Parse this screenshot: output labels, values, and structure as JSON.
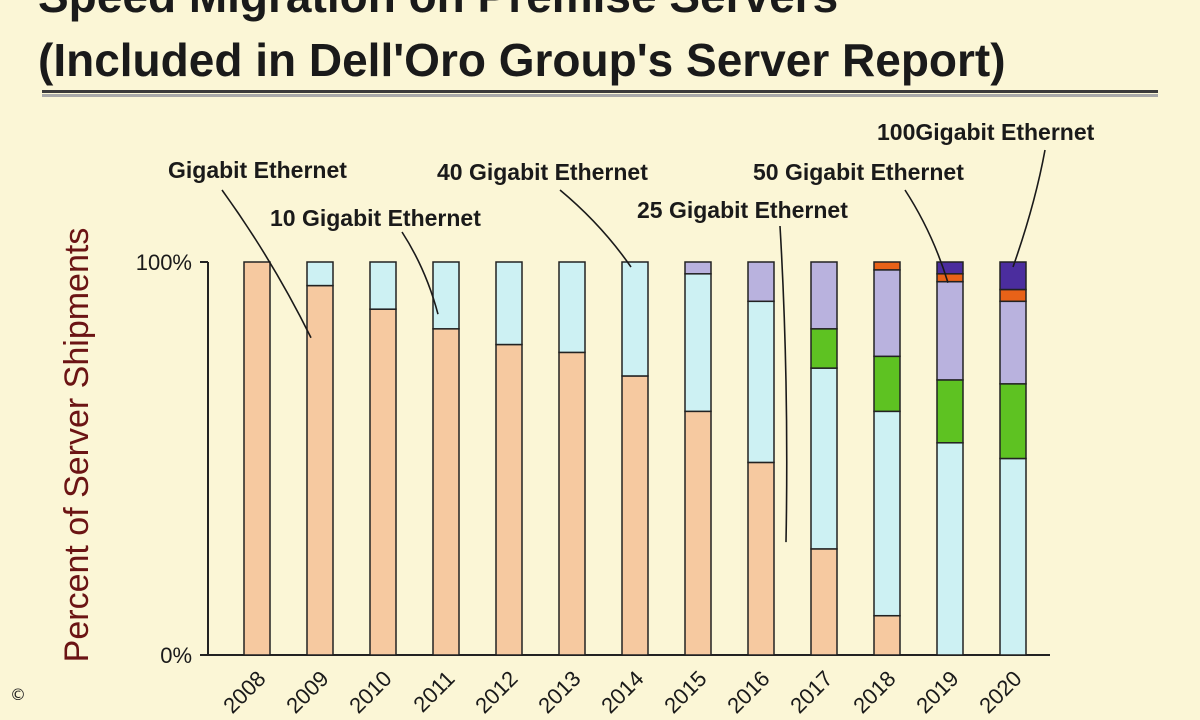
{
  "chart_data": {
    "type": "bar",
    "stacked": true,
    "title": [
      "Speed Migration on Premise Servers",
      "(Included in Dell'Oro Group's Server Report)"
    ],
    "ylabel": "Percent of Server Shipments",
    "yticks": [
      "0%",
      "100%"
    ],
    "ylim": [
      0,
      100
    ],
    "categories": [
      "2008",
      "2009",
      "2010",
      "2011",
      "2012",
      "2013",
      "2014",
      "2015",
      "2016",
      "2017",
      "2018",
      "2019",
      "2020"
    ],
    "series": [
      {
        "name": "Gigabit Ethernet",
        "color": "#f6c9a0",
        "values": [
          100,
          94,
          88,
          83,
          79,
          77,
          71,
          62,
          49,
          27,
          10,
          0,
          0
        ]
      },
      {
        "name": "10 Gigabit Ethernet",
        "color": "#cdf1f3",
        "values": [
          0,
          6,
          12,
          17,
          21,
          23,
          29,
          35,
          41,
          46,
          52,
          54,
          50
        ]
      },
      {
        "name": "25 Gigabit Ethernet",
        "color": "#5ec222",
        "values": [
          0,
          0,
          0,
          0,
          0,
          0,
          0,
          0,
          0,
          10,
          14,
          16,
          19
        ]
      },
      {
        "name": "40 Gigabit Ethernet",
        "color": "#b9b2de",
        "values": [
          0,
          0,
          0,
          0,
          0,
          0,
          0,
          3,
          10,
          17,
          22,
          25,
          21
        ]
      },
      {
        "name": "50 Gigabit Ethernet",
        "color": "#e86218",
        "values": [
          0,
          0,
          0,
          0,
          0,
          0,
          0,
          0,
          0,
          0,
          2,
          2,
          3
        ]
      },
      {
        "name": "100Gigabit Ethernet",
        "color": "#4b2d9e",
        "values": [
          0,
          0,
          0,
          0,
          0,
          0,
          0,
          0,
          0,
          0,
          0,
          3,
          7
        ]
      }
    ],
    "annotations": [
      {
        "series": "Gigabit Ethernet",
        "text": "Gigabit  Ethernet"
      },
      {
        "series": "10 Gigabit Ethernet",
        "text": "10 Gigabit Ethernet"
      },
      {
        "series": "40 Gigabit Ethernet",
        "text": "40 Gigabit Ethernet"
      },
      {
        "series": "50 Gigabit Ethernet",
        "text": "50 Gigabit Ethernet"
      },
      {
        "series": "25 Gigabit Ethernet",
        "text": "25 Gigabit Ethernet"
      },
      {
        "series": "100Gigabit Ethernet",
        "text": "100Gigabit  Ethernet"
      }
    ],
    "grid": false,
    "legend": "none"
  },
  "copyright": "©"
}
